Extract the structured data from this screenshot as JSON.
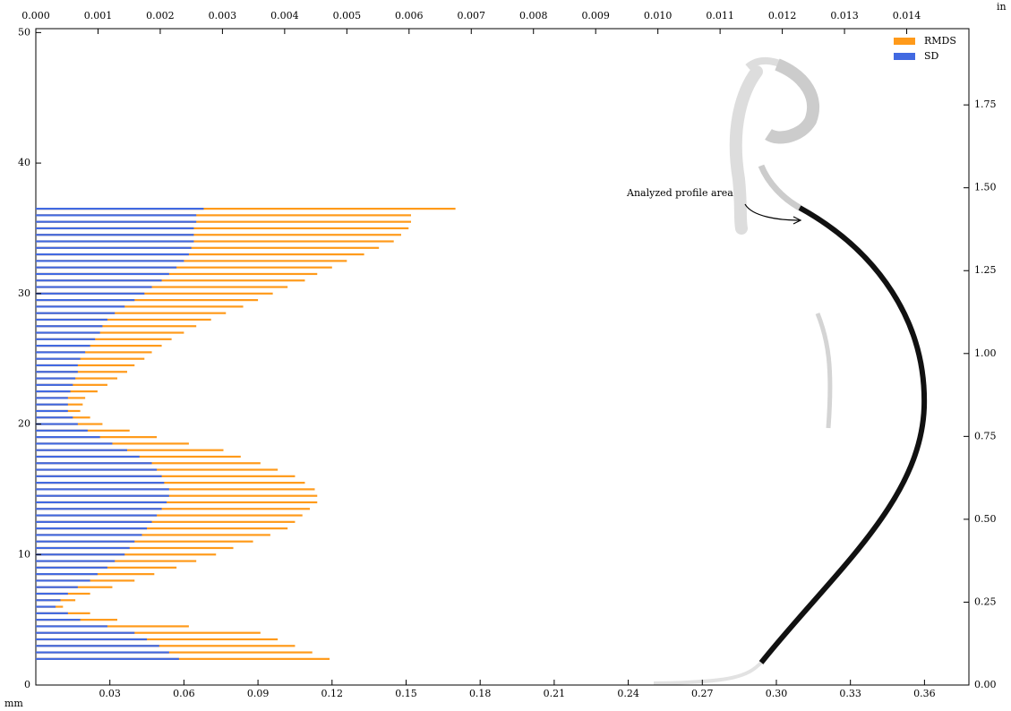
{
  "chart_data": {
    "type": "barh",
    "xlabel": "mm",
    "x2label": "in",
    "y2label": "in",
    "annotation": "Analyzed profile area",
    "y": [
      2,
      2.5,
      3,
      3.5,
      4,
      4.5,
      5,
      5.5,
      6,
      6.5,
      7,
      7.5,
      8,
      8.5,
      9,
      9.5,
      10,
      10.5,
      11,
      11.5,
      12,
      12.5,
      13,
      13.5,
      14,
      14.5,
      15,
      15.5,
      16,
      16.5,
      17,
      17.5,
      18,
      18.5,
      19,
      19.5,
      20,
      20.5,
      21,
      21.5,
      22,
      22.5,
      23,
      23.5,
      24,
      24.5,
      25,
      25.5,
      26,
      26.5,
      27,
      27.5,
      28,
      28.5,
      29,
      29.5,
      30,
      30.5,
      31,
      31.5,
      32,
      32.5,
      33,
      33.5,
      34,
      34.5,
      35,
      35.5,
      36,
      36.5
    ],
    "series": [
      {
        "name": "RMDS",
        "color": "#ff9a1a",
        "values": [
          0.119,
          0.112,
          0.105,
          0.098,
          0.091,
          0.062,
          0.033,
          0.022,
          0.011,
          0.016,
          0.022,
          0.031,
          0.04,
          0.048,
          0.057,
          0.065,
          0.073,
          0.08,
          0.088,
          0.095,
          0.102,
          0.105,
          0.108,
          0.111,
          0.114,
          0.114,
          0.113,
          0.109,
          0.105,
          0.098,
          0.091,
          0.083,
          0.076,
          0.062,
          0.049,
          0.038,
          0.027,
          0.022,
          0.018,
          0.019,
          0.02,
          0.025,
          0.029,
          0.033,
          0.037,
          0.04,
          0.044,
          0.047,
          0.051,
          0.055,
          0.06,
          0.065,
          0.071,
          0.077,
          0.084,
          0.09,
          0.096,
          0.102,
          0.109,
          0.114,
          0.12,
          0.126,
          0.133,
          0.139,
          0.145,
          0.148,
          0.151,
          0.152,
          0.152,
          0.17
        ]
      },
      {
        "name": "SD",
        "color": "#4169e1",
        "values": [
          0.058,
          0.054,
          0.05,
          0.045,
          0.04,
          0.029,
          0.018,
          0.013,
          0.008,
          0.01,
          0.013,
          0.017,
          0.022,
          0.025,
          0.029,
          0.032,
          0.036,
          0.038,
          0.04,
          0.043,
          0.045,
          0.047,
          0.049,
          0.051,
          0.053,
          0.054,
          0.054,
          0.052,
          0.051,
          0.049,
          0.047,
          0.042,
          0.037,
          0.031,
          0.026,
          0.021,
          0.017,
          0.015,
          0.013,
          0.013,
          0.013,
          0.014,
          0.015,
          0.016,
          0.017,
          0.017,
          0.018,
          0.02,
          0.022,
          0.024,
          0.026,
          0.027,
          0.029,
          0.032,
          0.036,
          0.04,
          0.044,
          0.047,
          0.051,
          0.054,
          0.057,
          0.06,
          0.062,
          0.063,
          0.064,
          0.064,
          0.064,
          0.065,
          0.065,
          0.068
        ]
      }
    ],
    "xlim": [
      0,
      0.378
    ],
    "xticks": [
      0.03,
      0.06,
      0.09,
      0.12,
      0.15,
      0.18,
      0.21,
      0.24,
      0.27,
      {
        "value": 0.3,
        "label": "0.30"
      },
      0.33,
      0.36
    ],
    "x2lim": [
      0,
      0.015
    ],
    "x2ticks": [
      {
        "value": 0,
        "label": "0.000"
      },
      0.001,
      0.002,
      0.003,
      0.004,
      0.005,
      0.006,
      0.007,
      0.008,
      0.009,
      {
        "value": 0.01,
        "label": "0.010"
      },
      0.011,
      0.012,
      0.013,
      0.014
    ],
    "ylim": [
      0,
      50.3
    ],
    "yticks": [
      0,
      10,
      20,
      30,
      40,
      50
    ],
    "y2lim": [
      0,
      1.98
    ],
    "y2ticks": [
      {
        "value": 0,
        "label": "0.00"
      },
      0.25,
      {
        "value": 0.5,
        "label": "0.50"
      },
      0.75,
      {
        "value": 1,
        "label": "1.00"
      },
      1.25,
      {
        "value": 1.5,
        "label": "1.50"
      },
      1.75
    ],
    "legend": "upper right"
  }
}
